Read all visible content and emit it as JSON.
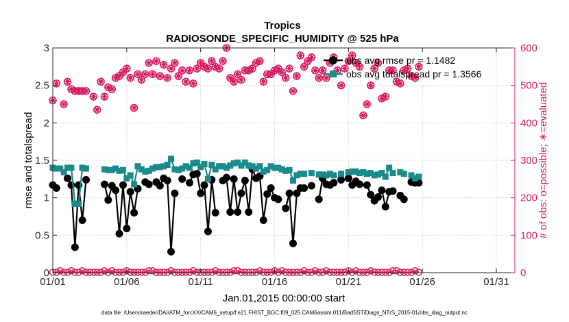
{
  "chart_data": {
    "type": "line",
    "title": "Tropics",
    "subtitle": "RADIOSONDE_SPECIFIC_HUMIDITY @ 525 hPa",
    "xlabel": "Jan.01,2015 00:00:00 start",
    "ylabel": "rmse and totalspread",
    "ylabel_right": "# of obs: o=possible; ∗=evaluated",
    "footnote": "data file: /Users/raeder/DAI/ATM_forcXX/CAM6_setup/f.e21.FHIST_BGC.f09_025.CAM6assim.011/BadSST/Diags_NTrS_2015-01/obs_diag_output.nc",
    "xlim": [
      0,
      31.25
    ],
    "ylim": [
      0,
      3
    ],
    "ylim_right": [
      0,
      600
    ],
    "x_ticks": [
      0,
      5,
      10,
      15,
      20,
      25,
      30
    ],
    "x_tick_labels": [
      "01/01",
      "01/06",
      "01/11",
      "01/16",
      "01/21",
      "01/26",
      "01/31"
    ],
    "y_ticks": [
      0,
      0.5,
      1,
      1.5,
      2,
      2.5,
      3
    ],
    "y_tick_labels": [
      "0",
      "0.5",
      "1",
      "1.5",
      "2",
      "2.5",
      "3"
    ],
    "y_ticks_right": [
      0,
      100,
      200,
      300,
      400,
      500,
      600
    ],
    "y_tick_labels_right": [
      "0",
      "100",
      "200",
      "300",
      "400",
      "500",
      "600"
    ],
    "grid": true,
    "legend_position": "top-right",
    "x_step_days": 0.25,
    "series": [
      {
        "name": "obs avg rmse pr = 1.1482",
        "color": "#000000",
        "axis": "left",
        "marker": "circle",
        "values": [
          1.17,
          1.13,
          null,
          null,
          1.26,
          1.17,
          0.34,
          1.17,
          0.7,
          1.24,
          null,
          null,
          null,
          null,
          1.18,
          0.97,
          1.16,
          1.1,
          0.52,
          1.17,
          0.59,
          1.08,
          0.8,
          1.12,
          null,
          1.21,
          1.18,
          null,
          1.21,
          1.16,
          1.26,
          1.23,
          0.28,
          1.06,
          null,
          1.25,
          null,
          1.2,
          1.31,
          1.32,
          1.06,
          1.17,
          0.55,
          1.24,
          0.8,
          null,
          1.23,
          1.27,
          0.81,
          1.25,
          0.81,
          1.06,
          1.23,
          0.81,
          1.38,
          1.26,
          1.29,
          0.7,
          1.05,
          1.13,
          1.0,
          0.98,
          null,
          0.86,
          1.06,
          0.39,
          1.06,
          1.13,
          1.13,
          null,
          1.16,
          null,
          0.98,
          1.26,
          1.18,
          1.17,
          1.2,
          null,
          1.24,
          null,
          1.26,
          1.17,
          1.22,
          1.18,
          null,
          1.17,
          1.04,
          0.96,
          1.01,
          1.1,
          0.88,
          1.08,
          1.09,
          null,
          1.03,
          0.98,
          null,
          1.21,
          1.2,
          1.2
        ]
      },
      {
        "name": "obs avg totalspread pr = 1.3566",
        "color": "#1a8a8a",
        "axis": "left",
        "marker": "square",
        "values": [
          1.4,
          1.39,
          1.39,
          1.34,
          1.4,
          1.4,
          0.92,
          0.92,
          1.4,
          1.39,
          null,
          null,
          null,
          null,
          1.38,
          1.37,
          1.37,
          1.39,
          1.36,
          1.37,
          1.26,
          1.3,
          1.18,
          1.42,
          1.38,
          1.35,
          1.36,
          1.39,
          1.41,
          1.41,
          1.42,
          1.44,
          1.52,
          1.38,
          1.37,
          1.39,
          1.42,
          1.4,
          1.46,
          1.47,
          1.41,
          1.45,
          1.25,
          1.44,
          1.38,
          1.42,
          1.42,
          1.4,
          1.43,
          1.46,
          1.47,
          1.43,
          1.47,
          1.43,
          1.42,
          1.39,
          1.42,
          1.35,
          1.37,
          1.42,
          1.4,
          1.4,
          1.38,
          1.36,
          1.37,
          1.23,
          1.3,
          1.32,
          1.32,
          null,
          1.33,
          null,
          1.31,
          1.31,
          1.3,
          1.32,
          1.3,
          null,
          1.32,
          null,
          1.34,
          1.35,
          1.35,
          1.33,
          1.34,
          1.32,
          1.33,
          1.3,
          1.31,
          1.33,
          1.28,
          1.4,
          1.33,
          null,
          1.34,
          1.32,
          null,
          1.3,
          1.26,
          1.28
        ]
      },
      {
        "name": "possible",
        "color": "#d81b60",
        "axis": "right",
        "marker": "circle-open",
        "values": [
          460,
          505,
          null,
          450,
          510,
          490,
          485,
          485,
          485,
          485,
          null,
          470,
          435,
          510,
          470,
          495,
          490,
          520,
          525,
          535,
          545,
          520,
          440,
          530,
          515,
          530,
          560,
          530,
          565,
          525,
          555,
          520,
          545,
          560,
          525,
          540,
          510,
          540,
          505,
          545,
          560,
          550,
          545,
          565,
          550,
          545,
          565,
          600,
          520,
          510,
          530,
          515,
          540,
          540,
          545,
          560,
          565,
          510,
          530,
          530,
          540,
          545,
          535,
          520,
          545,
          485,
          525,
          580,
          550,
          565,
          575,
          540,
          520,
          540,
          520,
          560,
          575,
          540,
          500,
          545,
          565,
          580,
          560,
          550,
          420,
          450,
          500,
          545,
          560,
          465,
          470,
          540,
          540,
          510,
          505,
          540,
          545,
          525,
          520,
          550
        ]
      },
      {
        "name": "evaluated",
        "color": "#d81b60",
        "axis": "right",
        "marker": "asterisk",
        "values": [
          460,
          505,
          null,
          450,
          510,
          490,
          485,
          485,
          485,
          485,
          null,
          470,
          435,
          510,
          470,
          495,
          490,
          520,
          525,
          535,
          545,
          520,
          440,
          530,
          515,
          530,
          560,
          530,
          565,
          525,
          555,
          520,
          545,
          560,
          525,
          540,
          510,
          540,
          505,
          545,
          560,
          550,
          545,
          565,
          550,
          545,
          565,
          600,
          520,
          510,
          530,
          515,
          540,
          540,
          545,
          560,
          565,
          510,
          530,
          530,
          540,
          545,
          535,
          520,
          545,
          485,
          525,
          580,
          550,
          565,
          575,
          540,
          520,
          540,
          520,
          560,
          575,
          540,
          500,
          545,
          565,
          580,
          560,
          550,
          420,
          450,
          500,
          545,
          560,
          465,
          470,
          540,
          540,
          510,
          505,
          540,
          545,
          525,
          520,
          550
        ]
      }
    ]
  }
}
